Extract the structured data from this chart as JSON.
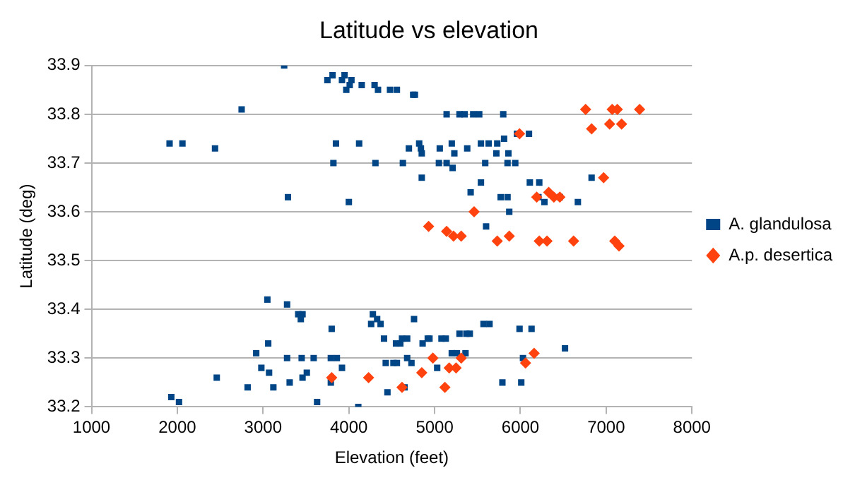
{
  "chart_data": {
    "type": "scatter",
    "title": "Latitude vs elevation",
    "xlabel": "Elevation (feet)",
    "ylabel": "Latitude (deg)",
    "xlim": [
      1000,
      8000
    ],
    "xticks": [
      1000,
      2000,
      3000,
      4000,
      5000,
      6000,
      7000,
      8000
    ],
    "ylim": [
      33.2,
      33.9
    ],
    "yticks": [
      33.2,
      33.3,
      33.4,
      33.5,
      33.6,
      33.7,
      33.8,
      33.9
    ],
    "grid": "y",
    "legend": "right",
    "series": [
      {
        "name": "A. glandulosa",
        "color": "#004586",
        "marker": "square",
        "x": [
          3246,
          3810,
          3750,
          3950,
          3920,
          4030,
          3970,
          4010,
          4150,
          4300,
          4340,
          4480,
          4560,
          2750,
          1910,
          2060,
          2440,
          3850,
          4120,
          3820,
          4310,
          4630,
          3290,
          4000,
          4750,
          4770,
          5140,
          5290,
          5350,
          5450,
          5520,
          5800,
          5960,
          6100,
          4700,
          4820,
          4840,
          4850,
          5060,
          5200,
          5230,
          5380,
          5540,
          5630,
          5730,
          5810,
          5720,
          5860,
          4850,
          5050,
          5140,
          5210,
          5590,
          5850,
          5940,
          6110,
          6220,
          6830,
          5420,
          5540,
          5770,
          5850,
          6210,
          6280,
          6460,
          6670,
          5870,
          5600,
          3050,
          3280,
          3410,
          3460,
          3440,
          3800,
          4280,
          4330,
          4370,
          4260,
          4410,
          4550,
          4620,
          3060,
          2920,
          3280,
          3450,
          3590,
          3790,
          3860,
          4430,
          4520,
          2460,
          2980,
          3070,
          3510,
          3460,
          3310,
          3920,
          3790,
          2820,
          3120,
          1930,
          2020,
          3630,
          4110,
          4450,
          4760,
          4680,
          4600,
          4860,
          4920,
          4940,
          5080,
          5130,
          5290,
          5370,
          5410,
          5570,
          5640,
          5990,
          6130,
          6520,
          4680,
          4560,
          4730,
          5200,
          5260,
          5360,
          5030,
          6030,
          5790,
          6010,
          4650
        ],
        "values": [
          33.9,
          33.88,
          33.87,
          33.88,
          33.87,
          33.87,
          33.85,
          33.86,
          33.86,
          33.86,
          33.85,
          33.85,
          33.85,
          33.81,
          33.74,
          33.74,
          33.73,
          33.74,
          33.74,
          33.7,
          33.7,
          33.7,
          33.63,
          33.62,
          33.84,
          33.84,
          33.8,
          33.8,
          33.8,
          33.8,
          33.8,
          33.8,
          33.76,
          33.76,
          33.73,
          33.74,
          33.73,
          33.72,
          33.73,
          33.74,
          33.72,
          33.73,
          33.74,
          33.74,
          33.74,
          33.75,
          33.72,
          33.72,
          33.67,
          33.7,
          33.7,
          33.69,
          33.7,
          33.7,
          33.7,
          33.66,
          33.66,
          33.67,
          33.64,
          33.66,
          33.63,
          33.63,
          33.63,
          33.62,
          33.63,
          33.62,
          33.6,
          33.57,
          33.42,
          33.41,
          33.39,
          33.39,
          33.38,
          33.36,
          33.39,
          33.38,
          33.37,
          33.37,
          33.34,
          33.33,
          33.34,
          33.33,
          33.31,
          33.3,
          33.3,
          33.3,
          33.3,
          33.3,
          33.29,
          33.29,
          33.26,
          33.28,
          33.27,
          33.27,
          33.26,
          33.25,
          33.28,
          33.25,
          33.24,
          33.24,
          33.22,
          33.21,
          33.21,
          33.2,
          33.23,
          33.38,
          33.34,
          33.33,
          33.33,
          33.34,
          33.34,
          33.34,
          33.34,
          33.35,
          33.35,
          33.35,
          33.37,
          33.37,
          33.36,
          33.36,
          33.32,
          33.3,
          33.29,
          33.29,
          33.31,
          33.31,
          33.31,
          33.28,
          33.3,
          33.25,
          33.25,
          33.24
        ]
      },
      {
        "name": "A.p. desertica",
        "color": "#ff420e",
        "marker": "diamond",
        "x": [
          6760,
          7070,
          7130,
          7390,
          6830,
          7040,
          7180,
          5990,
          6970,
          5460,
          6330,
          6390,
          6460,
          6190,
          4930,
          5140,
          5220,
          5310,
          5870,
          5730,
          6220,
          6310,
          6620,
          7100,
          7150,
          4230,
          3800,
          4620,
          4980,
          5310,
          5170,
          5250,
          4850,
          5090,
          5120,
          6060,
          6160
        ],
        "values": [
          33.81,
          33.81,
          33.81,
          33.81,
          33.77,
          33.78,
          33.78,
          33.76,
          33.67,
          33.6,
          33.64,
          33.63,
          33.63,
          33.63,
          33.57,
          33.56,
          33.55,
          33.55,
          33.55,
          33.54,
          33.54,
          33.54,
          33.54,
          33.54,
          33.53,
          33.26,
          33.26,
          33.24,
          33.3,
          33.3,
          33.28,
          33.28,
          33.27,
          null,
          33.24,
          33.29,
          33.31
        ]
      }
    ]
  }
}
